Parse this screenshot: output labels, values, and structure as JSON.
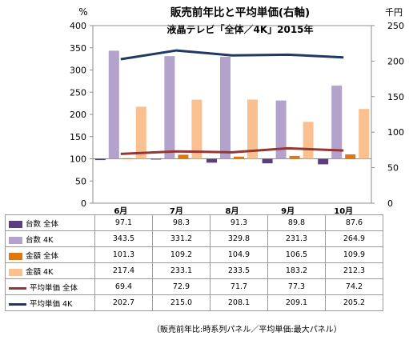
{
  "chart_data": {
    "type": "bar",
    "title": "販売前年比と平均単価(右軸)",
    "subtitle": "液晶テレビ「全体／4K」2015年",
    "left_axis": {
      "unit": "%",
      "ylim": [
        0,
        400
      ],
      "ticks": [
        "0",
        "50",
        "100",
        "150",
        "200",
        "250",
        "300",
        "350",
        "400"
      ]
    },
    "right_axis": {
      "unit": "千円",
      "ylim": [
        0,
        250
      ],
      "ticks": [
        "0",
        "50",
        "100",
        "150",
        "200",
        "250"
      ]
    },
    "categories": [
      "6月",
      "7月",
      "8月",
      "9月",
      "10月"
    ],
    "bar_baseline": 100,
    "series": [
      {
        "name": "台数 全体",
        "kind": "bar",
        "axis": "left",
        "color": "#5c3d7d",
        "values": [
          97.1,
          98.3,
          91.3,
          89.8,
          87.6
        ],
        "display": [
          "97.1",
          "98.3",
          "91.3",
          "89.8",
          "87.6"
        ]
      },
      {
        "name": "台数 4K",
        "kind": "bar",
        "axis": "left",
        "color": "#b3a2cb",
        "values": [
          343.5,
          331.2,
          329.8,
          231.3,
          264.9
        ],
        "display": [
          "343.5",
          "331.2",
          "329.8",
          "231.3",
          "264.9"
        ]
      },
      {
        "name": "金額 全体",
        "kind": "bar",
        "axis": "left",
        "color": "#e0770f",
        "values": [
          101.3,
          109.2,
          104.9,
          106.5,
          109.9
        ],
        "display": [
          "101.3",
          "109.2",
          "104.9",
          "106.5",
          "109.9"
        ]
      },
      {
        "name": "金額 4K",
        "kind": "bar",
        "axis": "left",
        "color": "#fac08f",
        "values": [
          217.4,
          233.1,
          233.5,
          183.2,
          212.3
        ],
        "display": [
          "217.4",
          "233.1",
          "233.5",
          "183.2",
          "212.3"
        ]
      },
      {
        "name": "平均単価 全体",
        "kind": "line",
        "axis": "right",
        "color": "#943634",
        "values": [
          69.4,
          72.9,
          71.7,
          77.3,
          74.2
        ],
        "display": [
          "69.4",
          "72.9",
          "71.7",
          "77.3",
          "74.2"
        ]
      },
      {
        "name": "平均単価 4K",
        "kind": "line",
        "axis": "right",
        "color": "#1f3864",
        "values": [
          202.7,
          215.0,
          208.1,
          209.1,
          205.2
        ],
        "display": [
          "202.7",
          "215.0",
          "208.1",
          "209.1",
          "205.2"
        ]
      }
    ],
    "grid": false,
    "legend": "data-table"
  },
  "note": "（販売前年比:時系列パネル／平均単価:最大パネル）"
}
